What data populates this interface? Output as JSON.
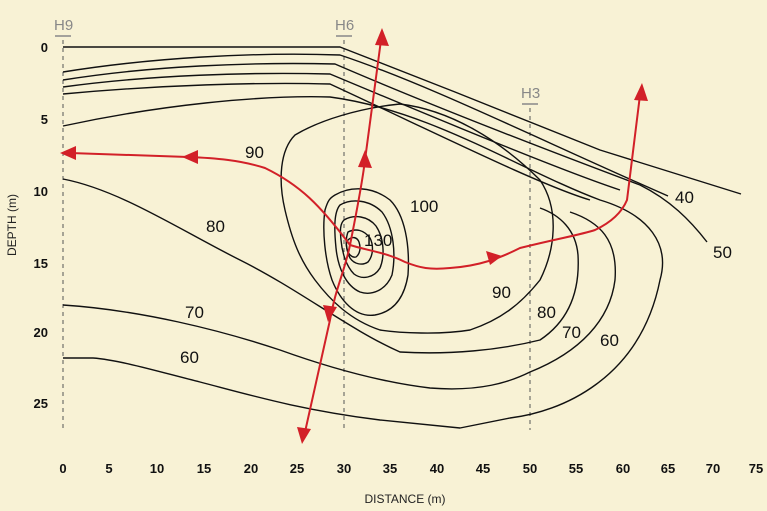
{
  "axes": {
    "xlabel": "DISTANCE (m)",
    "ylabel": "DEPTH (m)",
    "x_ticks": [
      "0",
      "5",
      "10",
      "15",
      "20",
      "25",
      "30",
      "35",
      "40",
      "45",
      "50",
      "55",
      "60",
      "65",
      "70",
      "75"
    ],
    "y_ticks": [
      "0",
      "5",
      "10",
      "15",
      "20",
      "25"
    ],
    "x_range": [
      0,
      75
    ],
    "y_range": [
      0,
      28
    ]
  },
  "boreholes": [
    {
      "name": "H9",
      "x": 0
    },
    {
      "name": "H6",
      "x": 30
    },
    {
      "name": "H3",
      "x": 50
    }
  ],
  "contour_labels": [
    "100",
    "130",
    "90",
    "80",
    "70",
    "60",
    "90",
    "80",
    "70",
    "60",
    "40",
    "50"
  ],
  "colors": {
    "background": "#f8f2d5",
    "contour": "#111111",
    "flow_arrows": "#d22028",
    "borehole": "#888888"
  }
}
